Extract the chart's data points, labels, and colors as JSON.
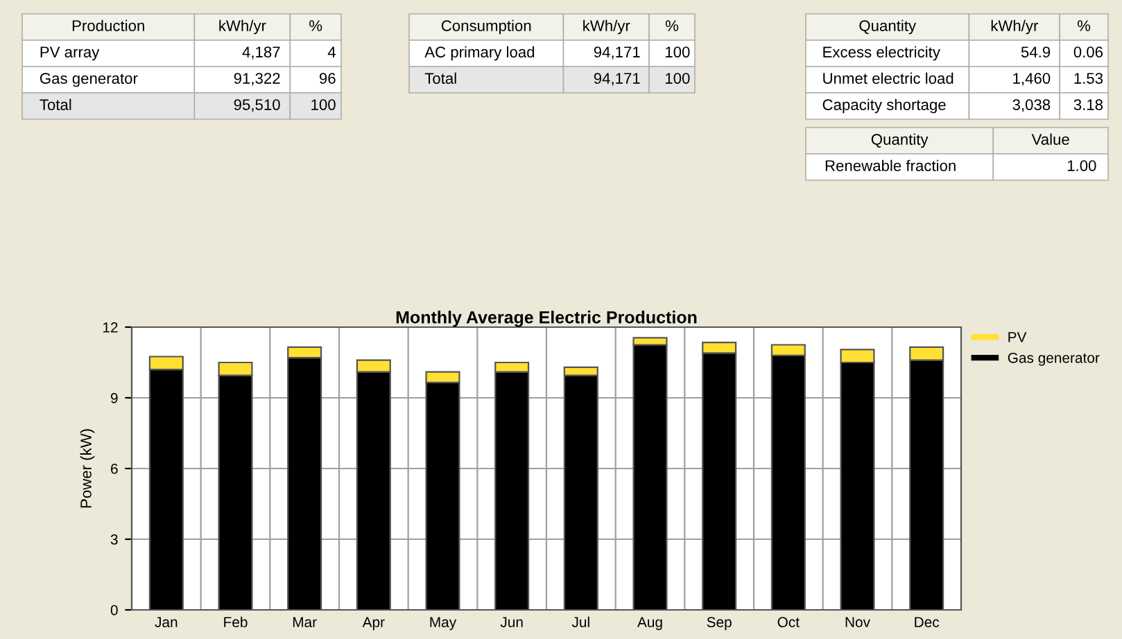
{
  "chart_data": [
    {
      "type": "other",
      "categories": [
        "Production",
        "kWh/yr",
        "%"
      ],
      "annotations": [
        "PV array",
        "4,187",
        "4",
        "Gas generator",
        "91,322",
        "96",
        "Total",
        "95,510",
        "100"
      ]
    },
    {
      "type": "other",
      "categories": [
        "Consumption",
        "kWh/yr",
        "%"
      ],
      "annotations": [
        "AC primary load",
        "94,171",
        "100",
        "Total",
        "94,171",
        "100"
      ]
    },
    {
      "type": "other",
      "categories": [
        "Quantity",
        "kWh/yr",
        "%"
      ],
      "annotations": [
        "Excess electricity",
        "54.9",
        "0.06",
        "Unmet electric load",
        "1,460",
        "1.53",
        "Capacity shortage",
        "3,038",
        "3.18"
      ]
    },
    {
      "type": "other",
      "categories": [
        "Quantity",
        "Value"
      ],
      "annotations": [
        "Renewable fraction",
        "1.00"
      ]
    },
    {
      "type": "bar",
      "title": "Monthly Average Electric Production",
      "ylabel": "Power (kW)",
      "categories": [
        "Jan",
        "Feb",
        "Mar",
        "Apr",
        "May",
        "Jun",
        "Jul",
        "Aug",
        "Sep",
        "Oct",
        "Nov",
        "Dec"
      ],
      "stacked": true,
      "series": [
        {
          "name": "Gas generator",
          "color": "#000000",
          "values": [
            10.2,
            9.95,
            10.7,
            10.1,
            9.65,
            10.1,
            9.95,
            11.25,
            10.9,
            10.8,
            10.5,
            10.6
          ]
        },
        {
          "name": "PV",
          "color": "#ffe033",
          "values": [
            0.55,
            0.55,
            0.45,
            0.5,
            0.45,
            0.4,
            0.35,
            0.3,
            0.45,
            0.45,
            0.55,
            0.55
          ]
        }
      ],
      "ylim": [
        0,
        12
      ],
      "yticks": [
        0,
        3,
        6,
        9,
        12
      ],
      "grid": "y",
      "legend": "top right"
    }
  ]
}
